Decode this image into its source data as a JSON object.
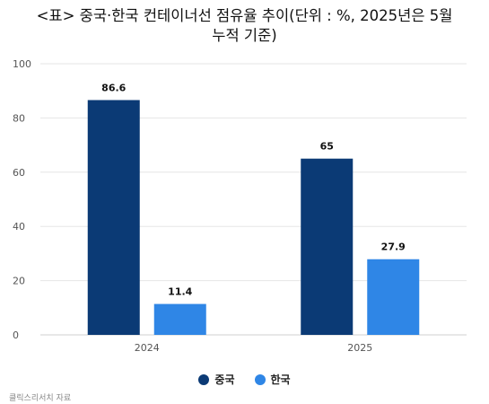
{
  "header": {
    "title_line1": "<표> 중국·한국 컨테이너선 점유율 추이(단위 : %, 2025년은 5월",
    "title_line2": "누적 기준)"
  },
  "chart_data": {
    "type": "bar",
    "categories": [
      "2024",
      "2025"
    ],
    "series": [
      {
        "name": "중국",
        "values": [
          86.6,
          65
        ],
        "color": "#0b3a75"
      },
      {
        "name": "한국",
        "values": [
          11.4,
          27.9
        ],
        "color": "#2f86e6"
      }
    ],
    "ylim": [
      0,
      100
    ],
    "yticks": [
      0,
      20,
      40,
      60,
      80,
      100
    ],
    "grid": true,
    "legend_position": "bottom-center"
  },
  "footer": {
    "source": "클릭스리서치 자료"
  }
}
